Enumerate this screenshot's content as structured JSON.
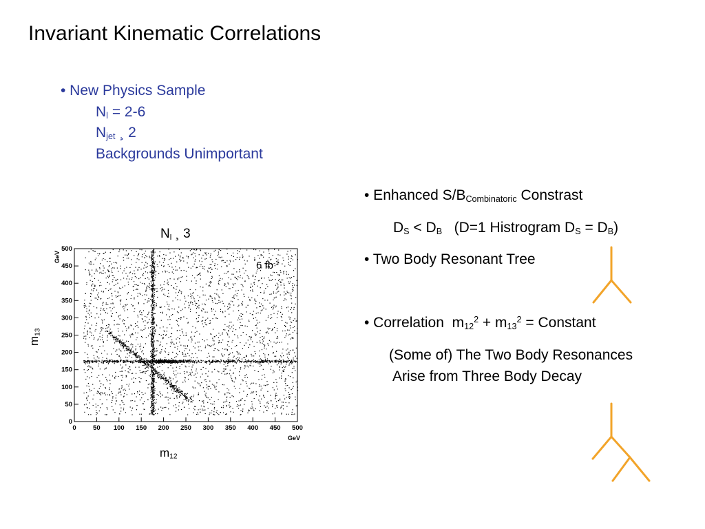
{
  "title": "Invariant Kinematic Correlations",
  "new_physics": {
    "bullet": "• New Physics Sample",
    "nl_main": "N",
    "nl_sub": "l",
    "nl_rest": " = 2-6",
    "njet_main": "N",
    "njet_sub": "jet",
    "njet_rest": " ¸ 2",
    "backgrounds": "Backgrounds Unimportant"
  },
  "bullets": {
    "b1_prefix": "• Enhanced S/B",
    "b1_sub": "Combinatoric",
    "b1_suffix": " Constrast",
    "b1s_d1": "D",
    "b1s_s1": "S",
    "b1s_mid": " < D",
    "b1s_s2": "B",
    "b1s_paren": "   (D=1 Histrogram D",
    "b1s_s3": "S",
    "b1s_eq": " = D",
    "b1s_s4": "B",
    "b1s_close": ")",
    "b2": "• Two Body Resonant Tree",
    "b3_prefix": "• Correlation  m",
    "b3_sub1": "12",
    "b3_sup1": "2",
    "b3_mid": " + m",
    "b3_sub2": "13",
    "b3_sup2": "2",
    "b3_suffix": " = Constant",
    "b3s1": "(Some of) The Two Body Resonances",
    "b3s2": "Arise from Three Body Decay"
  },
  "plot": {
    "title_main": "N",
    "title_sub": "l",
    "title_rest": " ¸ 3",
    "lumi_main": "6 fb",
    "lumi_sup": "-1",
    "ylabel_main": "m",
    "ylabel_sub": "13",
    "xlabel_main": "m",
    "xlabel_sub": "12",
    "x_unit": "GeV",
    "y_unit": "GeV"
  },
  "chart_data": {
    "type": "scatter",
    "xlabel": "m12",
    "ylabel": "m13",
    "xlim": [
      0,
      500
    ],
    "ylim": [
      0,
      500
    ],
    "x_ticks": [
      0,
      50,
      100,
      150,
      200,
      250,
      300,
      350,
      400,
      450,
      500
    ],
    "y_ticks": [
      0,
      50,
      100,
      150,
      200,
      250,
      300,
      350,
      400,
      450,
      500
    ],
    "x_unit": "GeV",
    "y_unit": "GeV",
    "annotation": "6 fb-1",
    "features": {
      "vertical_band_x": 175,
      "horizontal_band_y": 175,
      "diagonal_from": [
        75,
        260
      ],
      "diagonal_to": [
        260,
        60
      ]
    }
  },
  "colors": {
    "title_blue": "#2b3a9c",
    "tree_orange": "#f2a42a"
  }
}
